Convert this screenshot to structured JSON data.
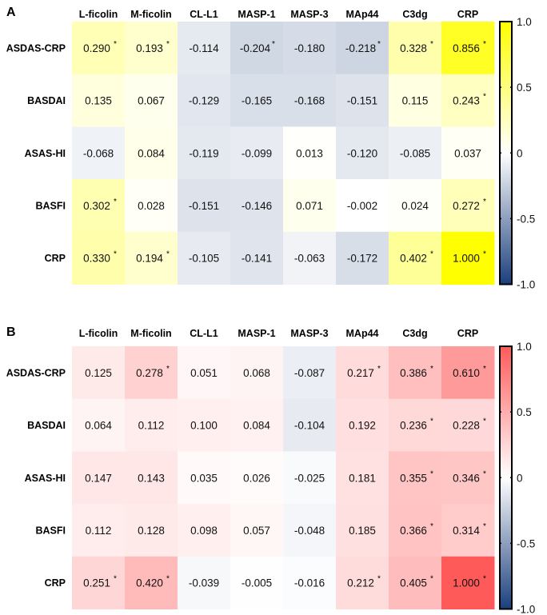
{
  "chart_data": [
    {
      "type": "heatmap",
      "panel": "A",
      "columns": [
        "L-ficolin",
        "M-ficolin",
        "CL-L1",
        "MASP-1",
        "MASP-3",
        "MAp44",
        "C3dg",
        "CRP"
      ],
      "rows": [
        "ASDAS-CRP",
        "BASDAI",
        "ASAS-HI",
        "BASFI",
        "CRP"
      ],
      "values": [
        [
          0.29,
          0.193,
          -0.114,
          -0.204,
          -0.18,
          -0.218,
          0.328,
          0.856
        ],
        [
          0.135,
          0.067,
          -0.129,
          -0.165,
          -0.168,
          -0.151,
          0.115,
          0.243
        ],
        [
          -0.068,
          0.084,
          -0.119,
          -0.099,
          0.013,
          -0.12,
          -0.085,
          0.037
        ],
        [
          0.302,
          0.028,
          -0.151,
          -0.146,
          0.071,
          -0.002,
          0.024,
          0.272
        ],
        [
          0.33,
          0.194,
          -0.105,
          -0.141,
          -0.063,
          -0.172,
          0.402,
          1.0
        ]
      ],
      "significant": [
        [
          true,
          true,
          false,
          true,
          false,
          true,
          true,
          true
        ],
        [
          false,
          false,
          false,
          false,
          false,
          false,
          false,
          true
        ],
        [
          false,
          false,
          false,
          false,
          false,
          false,
          false,
          false
        ],
        [
          true,
          false,
          false,
          false,
          false,
          false,
          false,
          true
        ],
        [
          true,
          true,
          false,
          false,
          false,
          false,
          true,
          true
        ]
      ],
      "colorbar": {
        "range": [
          -1.0,
          1.0
        ],
        "ticks": [
          "1.0",
          "0.5",
          "0",
          "-0.5",
          "-1.0"
        ],
        "low_color": "#1b3f7c",
        "mid_color": "#ffffff",
        "high_color": "#ffff00"
      }
    },
    {
      "type": "heatmap",
      "panel": "B",
      "columns": [
        "L-ficolin",
        "M-ficolin",
        "CL-L1",
        "MASP-1",
        "MASP-3",
        "MAp44",
        "C3dg",
        "CRP"
      ],
      "rows": [
        "ASDAS-CRP",
        "BASDAI",
        "ASAS-HI",
        "BASFI",
        "CRP"
      ],
      "values": [
        [
          0.125,
          0.278,
          0.051,
          0.068,
          -0.087,
          0.217,
          0.386,
          0.61
        ],
        [
          0.064,
          0.112,
          0.1,
          0.084,
          -0.104,
          0.192,
          0.236,
          0.228
        ],
        [
          0.147,
          0.143,
          0.035,
          0.026,
          -0.025,
          0.181,
          0.355,
          0.346
        ],
        [
          0.112,
          0.128,
          0.098,
          0.057,
          -0.048,
          0.185,
          0.366,
          0.314
        ],
        [
          0.251,
          0.42,
          -0.039,
          -0.005,
          -0.016,
          0.212,
          0.405,
          1.0
        ]
      ],
      "significant": [
        [
          false,
          true,
          false,
          false,
          false,
          true,
          true,
          true
        ],
        [
          false,
          false,
          false,
          false,
          false,
          false,
          true,
          true
        ],
        [
          false,
          false,
          false,
          false,
          false,
          false,
          true,
          true
        ],
        [
          false,
          false,
          false,
          false,
          false,
          false,
          true,
          true
        ],
        [
          true,
          true,
          false,
          false,
          false,
          true,
          true,
          true
        ]
      ],
      "colorbar": {
        "range": [
          -1.0,
          1.0
        ],
        "ticks": [
          "1.0",
          "0.5",
          "0",
          "-0.5",
          "-1.0"
        ],
        "low_color": "#1b3f7c",
        "mid_color": "#ffffff",
        "high_color": "#ff5a5a"
      }
    }
  ]
}
